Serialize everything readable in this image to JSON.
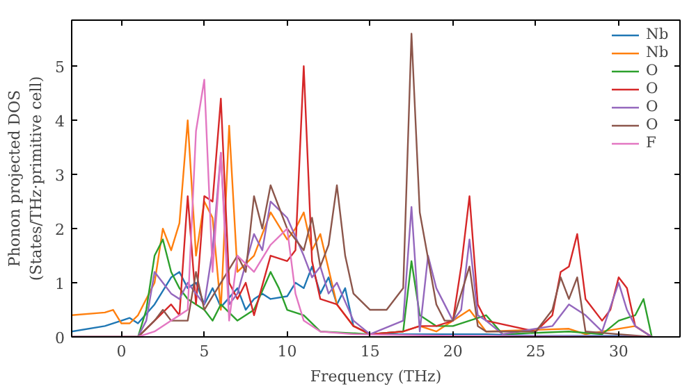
{
  "chart_data": {
    "type": "line",
    "xlabel": "Frequency (THz)",
    "ylabel": "Phonon projected DOS\n(States/THz·primitive cell)",
    "xlim": [
      -3,
      33.7
    ],
    "ylim": [
      0,
      5.85
    ],
    "xticks": [
      0,
      5,
      10,
      15,
      20,
      25,
      30
    ],
    "yticks": [
      0,
      1,
      2,
      3,
      4,
      5
    ],
    "grid": false,
    "legend": "top right",
    "series": [
      {
        "name": "Nb",
        "color": "#1f77b4",
        "x": [
          -3,
          -1,
          0,
          0.5,
          1,
          2,
          3,
          3.5,
          4,
          4.5,
          5,
          5.5,
          6,
          7,
          7.5,
          8,
          8.5,
          9,
          10,
          10.5,
          11,
          11.5,
          12,
          12.5,
          13,
          13.5,
          14,
          15,
          17,
          20,
          22,
          25,
          30,
          32
        ],
        "values": [
          0.1,
          0.2,
          0.3,
          0.35,
          0.25,
          0.6,
          1.1,
          1.2,
          0.9,
          1.0,
          0.6,
          0.9,
          0.55,
          0.9,
          0.5,
          0.7,
          0.8,
          0.7,
          0.75,
          1.0,
          0.9,
          1.3,
          0.8,
          1.1,
          0.6,
          0.9,
          0.2,
          0.05,
          0.05,
          0.05,
          0.05,
          0.02,
          0.02,
          0.0
        ]
      },
      {
        "name": "Nb",
        "color": "#ff7f0e",
        "x": [
          -3,
          -1,
          -0.5,
          0,
          0.5,
          1,
          2,
          2.5,
          3,
          3.5,
          4,
          4.5,
          5,
          5.5,
          6,
          6.5,
          7,
          8,
          9,
          10,
          10.5,
          11,
          11.5,
          12,
          13,
          14,
          15,
          17,
          18,
          19,
          21,
          22,
          27,
          28,
          31,
          32
        ],
        "values": [
          0.4,
          0.45,
          0.5,
          0.25,
          0.25,
          0.4,
          1.0,
          2.0,
          1.6,
          2.1,
          4.0,
          1.5,
          2.5,
          2.2,
          0.5,
          3.9,
          1.2,
          1.5,
          2.3,
          1.8,
          2.0,
          2.3,
          1.6,
          1.9,
          0.6,
          0.2,
          0.05,
          0.1,
          0.2,
          0.1,
          0.5,
          0.1,
          0.15,
          0.05,
          0.2,
          0.0
        ]
      },
      {
        "name": "O",
        "color": "#2ca02c",
        "x": [
          -3,
          1,
          1.5,
          2,
          2.5,
          3,
          3.5,
          4,
          5,
          5.5,
          6,
          7,
          8,
          9,
          9.5,
          10,
          11,
          12,
          15,
          17,
          17.5,
          18,
          19,
          20,
          21,
          22,
          23,
          27,
          29,
          30,
          31,
          31.5,
          32
        ],
        "values": [
          0,
          0,
          0.5,
          1.5,
          1.8,
          1.2,
          0.9,
          0.7,
          0.5,
          0.3,
          0.6,
          0.3,
          0.5,
          1.2,
          0.9,
          0.5,
          0.4,
          0.1,
          0.05,
          0.1,
          1.4,
          0.4,
          0.2,
          0.2,
          0.3,
          0.4,
          0.05,
          0.1,
          0.05,
          0.3,
          0.4,
          0.7,
          0.0
        ]
      },
      {
        "name": "O",
        "color": "#d62728",
        "x": [
          -3,
          1,
          2,
          3,
          3.5,
          4,
          4.5,
          5,
          5.5,
          6,
          6.5,
          7,
          7.5,
          8,
          9,
          10,
          10.5,
          11,
          11.5,
          12,
          13,
          14,
          15,
          17,
          18,
          19,
          20,
          20.5,
          21,
          21.5,
          22,
          25,
          26,
          26.5,
          27,
          27.5,
          28,
          29,
          29.5,
          30,
          30.5,
          31,
          32
        ],
        "values": [
          0,
          0,
          0.3,
          0.6,
          0.4,
          2.6,
          0.6,
          2.6,
          2.5,
          4.4,
          1.0,
          0.7,
          1.0,
          0.4,
          1.5,
          1.4,
          1.6,
          5.0,
          1.4,
          0.7,
          0.6,
          0.2,
          0.05,
          0.1,
          0.2,
          0.2,
          0.3,
          1.3,
          2.6,
          0.6,
          0.3,
          0.1,
          0.4,
          1.2,
          1.3,
          1.9,
          0.7,
          0.3,
          0.5,
          1.1,
          0.9,
          0.2,
          0
        ]
      },
      {
        "name": "O",
        "color": "#9467bd",
        "x": [
          -3,
          1,
          1.5,
          2,
          2.5,
          3,
          3.5,
          4,
          5,
          5.5,
          6,
          6.5,
          7,
          8,
          8.5,
          9,
          10,
          11,
          11.5,
          12,
          12.5,
          13,
          14,
          15,
          17,
          17.5,
          18,
          18.5,
          19,
          20,
          20.5,
          21,
          21.5,
          22,
          23,
          26,
          27,
          28,
          29,
          30,
          30.5,
          31,
          32
        ],
        "values": [
          0,
          0,
          0.3,
          1.2,
          1.0,
          0.8,
          0.7,
          1.0,
          0.6,
          1.6,
          3.4,
          0.6,
          0.8,
          1.9,
          1.6,
          2.5,
          2.2,
          1.5,
          1.1,
          1.3,
          0.8,
          1.0,
          0.3,
          0.05,
          0.3,
          2.4,
          0.1,
          1.5,
          0.9,
          0.3,
          0.5,
          1.8,
          0.4,
          0.3,
          0.05,
          0.2,
          0.6,
          0.4,
          0.1,
          1.0,
          0.5,
          0.2,
          0
        ]
      },
      {
        "name": "O",
        "color": "#8c564b",
        "x": [
          -3,
          1,
          2,
          2.5,
          3,
          4,
          4.5,
          5,
          6,
          7,
          7.5,
          8,
          8.5,
          9,
          10,
          11,
          11.5,
          12,
          12.5,
          13,
          13.5,
          14,
          15,
          16,
          17,
          17.5,
          18,
          19,
          19.5,
          20,
          21,
          21.5,
          22,
          25,
          26,
          26.5,
          27,
          27.5,
          28,
          30,
          32
        ],
        "values": [
          0,
          0,
          0.3,
          0.5,
          0.3,
          0.3,
          1.2,
          0.5,
          1.0,
          1.5,
          1.2,
          2.6,
          2.0,
          2.8,
          2.0,
          1.6,
          2.2,
          1.3,
          1.7,
          2.8,
          1.5,
          0.8,
          0.5,
          0.5,
          0.9,
          5.6,
          2.3,
          0.6,
          0.3,
          0.3,
          1.3,
          0.2,
          0.1,
          0.1,
          0.5,
          1.1,
          0.7,
          1.1,
          0.1,
          0.05,
          0
        ]
      },
      {
        "name": "F",
        "color": "#e377c2",
        "x": [
          -3,
          1,
          2,
          3,
          4,
          4.5,
          5,
          5.5,
          6,
          6.5,
          7,
          8,
          9,
          10,
          10.5,
          11,
          12,
          14,
          20,
          32
        ],
        "values": [
          0,
          0,
          0.1,
          0.3,
          0.5,
          3.8,
          4.75,
          1.2,
          3.4,
          0.3,
          1.5,
          1.2,
          1.7,
          2.0,
          0.8,
          0.3,
          0.1,
          0.05,
          0.02,
          0
        ]
      }
    ]
  }
}
